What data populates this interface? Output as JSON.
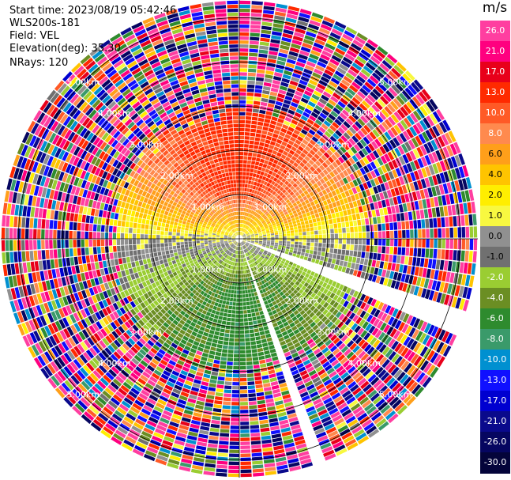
{
  "header": {
    "start_time": "Start time: 2023/08/19 05:42:46",
    "instrument": "WLS200s-181",
    "field": "Field: VEL",
    "elevation": "Elevation(deg): 35.30",
    "nrays": "NRays: 120"
  },
  "chart_data": {
    "type": "heatmap",
    "projection": "polar-ppi",
    "field": "VEL",
    "units": "m/s",
    "elevation_deg": 35.3,
    "n_rays": 120,
    "range_rings_km": [
      1.0,
      2.0,
      3.0,
      4.0,
      5.0
    ],
    "range_ring_labels": [
      "1.00km",
      "2.00km",
      "3.00km",
      "4.00km",
      "5.00km"
    ],
    "max_range_km": 5.4,
    "missing_ray_azimuths_deg": [
      111,
      160
    ],
    "pattern": {
      "inner_range_km": 2.9,
      "towards_sector_center_deg": 0,
      "towards_speed_ms": 11,
      "away_sector_center_deg": 180,
      "away_speed_ms": -7,
      "noise_ms": 30
    },
    "colorbar": {
      "title": "m/s",
      "levels": [
        {
          "label": "26.0",
          "color": "#ff3ea0"
        },
        {
          "label": "21.0",
          "color": "#ff007f"
        },
        {
          "label": "17.0",
          "color": "#e8001a"
        },
        {
          "label": "13.0",
          "color": "#ff2a00"
        },
        {
          "label": "10.0",
          "color": "#ff5a26"
        },
        {
          "label": "8.0",
          "color": "#ff8a4e"
        },
        {
          "label": "6.0",
          "color": "#ff9f1a"
        },
        {
          "label": "4.0",
          "color": "#ffc400"
        },
        {
          "label": "2.0",
          "color": "#ffee00"
        },
        {
          "label": "1.0",
          "color": "#f8f840"
        },
        {
          "label": "0.0",
          "color": "#909090"
        },
        {
          "label": "-1.0",
          "color": "#707070"
        },
        {
          "label": "-2.0",
          "color": "#9acd32"
        },
        {
          "label": "-4.0",
          "color": "#6b8e23"
        },
        {
          "label": "-6.0",
          "color": "#2e8b2e"
        },
        {
          "label": "-8.0",
          "color": "#3a9a6a"
        },
        {
          "label": "-10.0",
          "color": "#0090d0"
        },
        {
          "label": "-13.0",
          "color": "#1010ff"
        },
        {
          "label": "-17.0",
          "color": "#0000d0"
        },
        {
          "label": "-21.0",
          "color": "#0a0a8c"
        },
        {
          "label": "-26.0",
          "color": "#060660"
        },
        {
          "label": "-30.0",
          "color": "#04043a"
        }
      ]
    }
  }
}
